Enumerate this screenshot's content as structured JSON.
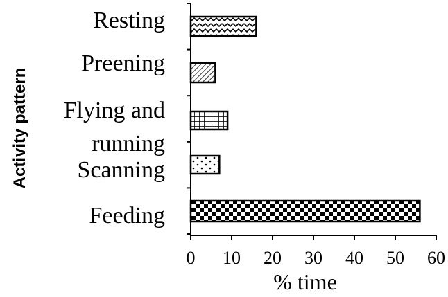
{
  "chart_data": {
    "type": "bar",
    "orientation": "horizontal",
    "categories": [
      "Resting",
      "Preening",
      "Flying and running",
      "Scanning",
      "Feeding"
    ],
    "category_display": [
      [
        "Resting"
      ],
      [
        "Preening"
      ],
      [
        "Flying and",
        "running"
      ],
      [
        "Scanning"
      ],
      [
        "Feeding"
      ]
    ],
    "values": [
      16,
      6,
      9,
      7,
      56
    ],
    "patterns": [
      "zigzag",
      "diagonal-hatch",
      "grid",
      "dots",
      "checker"
    ],
    "xlabel": "% time",
    "ylabel": "Activity pattern",
    "xlim": [
      0,
      60
    ],
    "xticks": [
      "0",
      "10",
      "20",
      "30",
      "40",
      "50",
      "60"
    ],
    "grid": false,
    "legend": "none",
    "colors": {
      "bar_stroke": "#000000",
      "bar_fill": "#ffffff",
      "axis": "#000000"
    }
  }
}
